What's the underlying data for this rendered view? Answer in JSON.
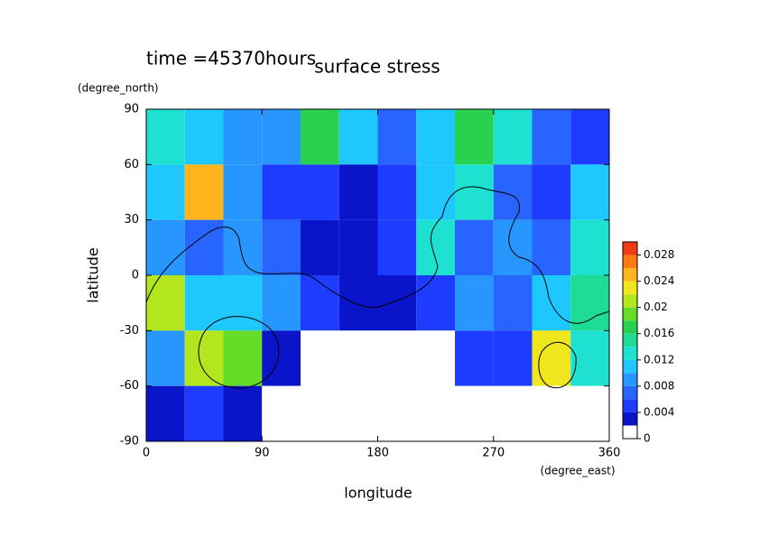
{
  "chart_data": {
    "type": "contour",
    "title": "surface stress",
    "subtitle": "time =45370hours",
    "xlabel": "longitude",
    "ylabel": "latitude",
    "xunit": "(degree_east)",
    "yunit": "(degree_north)",
    "xlim": [
      0,
      360
    ],
    "xticks": [
      0,
      90,
      180,
      270,
      360
    ],
    "ylim": [
      -90,
      90
    ],
    "yticks": [
      -90,
      -60,
      -30,
      0,
      30,
      60,
      90
    ],
    "x": [
      15,
      45,
      75,
      105,
      135,
      165,
      195,
      225,
      255,
      285,
      315,
      345
    ],
    "y": [
      75,
      45,
      15,
      -15,
      -45,
      -75
    ],
    "z": [
      [
        0.012,
        0.01,
        0.008,
        0.008,
        0.016,
        0.01,
        0.006,
        0.01,
        0.016,
        0.012,
        0.006,
        0.004
      ],
      [
        0.01,
        0.024,
        0.008,
        0.004,
        0.004,
        0.002,
        0.004,
        0.01,
        0.012,
        0.006,
        0.004,
        0.01
      ],
      [
        0.008,
        0.006,
        0.008,
        0.006,
        0.002,
        0.002,
        0.004,
        0.012,
        0.006,
        0.008,
        0.006,
        0.012
      ],
      [
        0.02,
        0.01,
        0.01,
        0.008,
        0.004,
        0.002,
        0.002,
        0.004,
        0.008,
        0.006,
        0.01,
        0.014
      ],
      [
        0.008,
        0.02,
        0.018,
        0.002,
        0.001,
        0,
        0,
        0,
        0.004,
        0.004,
        0.022,
        0.012
      ],
      [
        0.002,
        0.004,
        0.002,
        0,
        0,
        0,
        0,
        0,
        0,
        0,
        0,
        0
      ]
    ],
    "colorbar": {
      "lim": [
        0,
        0.03
      ],
      "ticks": [
        0,
        0.004,
        0.008,
        0.012,
        0.016,
        0.02,
        0.024,
        0.028
      ],
      "step": 0.002,
      "colors": [
        "#ffffff",
        "#0a14c8",
        "#1e3cff",
        "#2864ff",
        "#2896ff",
        "#1ec8ff",
        "#1ee1d2",
        "#1edc96",
        "#28d250",
        "#64dc28",
        "#b4e61e",
        "#f0e61e",
        "#ffb41e",
        "#ff7814",
        "#f03c14"
      ]
    }
  }
}
